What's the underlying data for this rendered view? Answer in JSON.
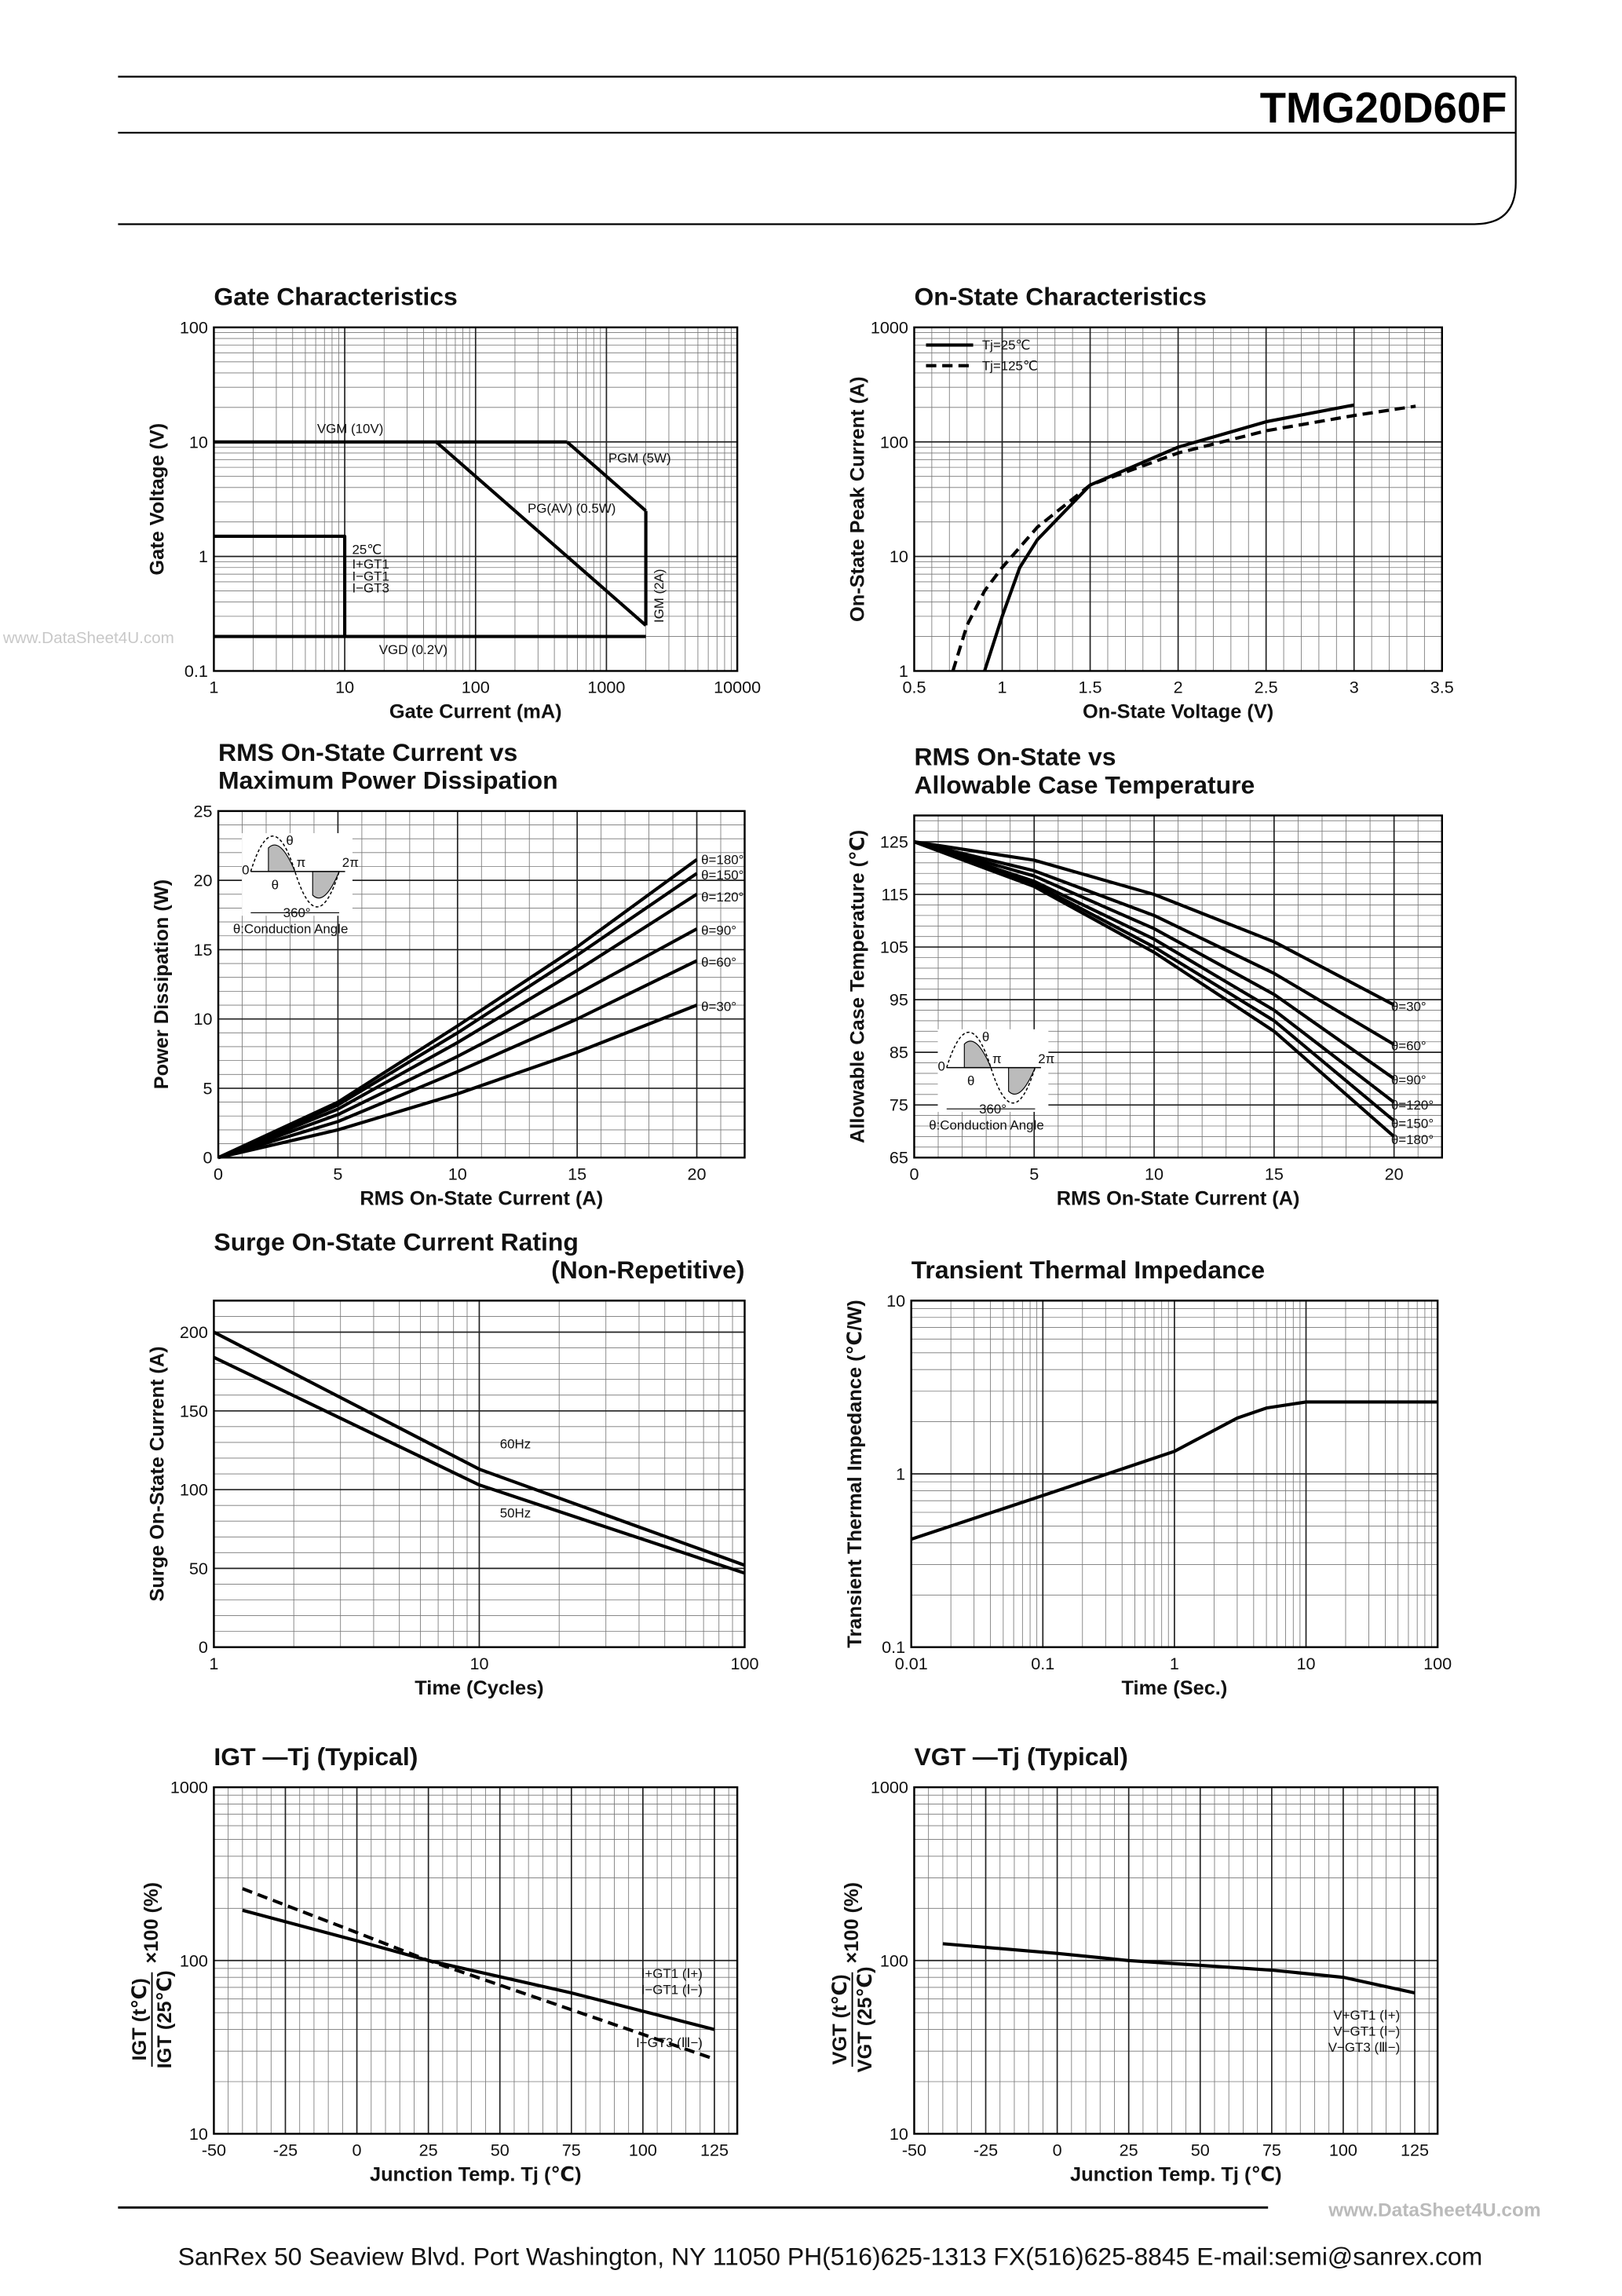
{
  "header": {
    "part": "TMG20D60F"
  },
  "watermark": "www.DataSheet4U.com",
  "footer": {
    "watermark": "www.DataSheet4U.com",
    "address": "SanRex 50 Seaview Blvd. Port Washington, NY 11050 PH(516)625-1313 FX(516)625-8845 E-mail:semi@sanrex.com"
  },
  "chart_data": [
    {
      "type": "line",
      "title": [
        "Gate Characteristics"
      ],
      "xlabel": "Gate Current (mA)",
      "ylabel": "Gate Voltage (V)",
      "xlog": true,
      "ylog": true,
      "xlim": [
        1,
        10000
      ],
      "ylim": [
        0.1,
        100
      ],
      "xticks": [
        1,
        10,
        100,
        1000,
        10000
      ],
      "yticks": [
        0.1,
        1,
        10,
        100
      ],
      "grid": true,
      "minor_grid": true,
      "series": [
        {
          "name": "VGM (10V)",
          "color": "#000000",
          "x": [
            1,
            500
          ],
          "values": [
            10,
            10
          ]
        },
        {
          "name": "PGM (5W)",
          "color": "#000000",
          "x": [
            500,
            2000
          ],
          "values": [
            10,
            2.5
          ]
        },
        {
          "name": "PG(AV) (0.5W)",
          "color": "#000000",
          "x": [
            50,
            2000
          ],
          "values": [
            10,
            0.25
          ]
        },
        {
          "name": "IGM (2A)",
          "color": "#000000",
          "x": [
            2000,
            2000
          ],
          "values": [
            2.5,
            0.25
          ]
        },
        {
          "name": "VGD (0.2V)",
          "color": "#000000",
          "x": [
            1,
            2000
          ],
          "values": [
            0.2,
            0.2
          ]
        },
        {
          "name": "25℃",
          "notes": [
            "I+GT1",
            "I−GT1",
            "I−GT3"
          ],
          "color": "#000000",
          "x": [
            1,
            10,
            10
          ],
          "values": [
            1.5,
            1.5,
            0.2
          ]
        }
      ]
    },
    {
      "type": "line",
      "title": [
        "On-State Characteristics"
      ],
      "xlabel": "On-State Voltage (V)",
      "ylabel": "On-State Peak Current (A)",
      "xlog": false,
      "ylog": true,
      "xlim": [
        0.5,
        3.5
      ],
      "ylim": [
        1,
        1000
      ],
      "xticks": [
        0.5,
        1,
        1.5,
        2,
        2.5,
        3,
        3.5
      ],
      "yticks": [
        1,
        10,
        100,
        1000
      ],
      "grid": true,
      "minor_grid": true,
      "legend": "upper left",
      "series": [
        {
          "name": "Tj=25℃",
          "color": "#000000",
          "dash": false,
          "x": [
            0.9,
            1.0,
            1.1,
            1.2,
            1.5,
            2,
            2.5,
            3
          ],
          "values": [
            1,
            3,
            8,
            14,
            42,
            90,
            150,
            210
          ]
        },
        {
          "name": "Tj=125℃",
          "color": "#000000",
          "dash": true,
          "x": [
            0.72,
            0.8,
            0.9,
            1.0,
            1.2,
            1.5,
            2,
            2.5,
            3,
            3.35
          ],
          "values": [
            1,
            2.5,
            5,
            8,
            18,
            42,
            80,
            125,
            170,
            205
          ]
        }
      ]
    },
    {
      "type": "line",
      "title": [
        "RMS On-State Current vs",
        "Maximum Power Dissipation"
      ],
      "xlabel": "RMS On-State Current (A)",
      "ylabel": "Power Dissipation (W)",
      "xlog": false,
      "ylog": false,
      "xlim": [
        0,
        22
      ],
      "ylim": [
        0,
        25
      ],
      "xticks": [
        0,
        5,
        10,
        15,
        20
      ],
      "yticks": [
        0,
        5,
        10,
        15,
        20,
        25
      ],
      "grid": true,
      "minor_grid": true,
      "inset": {
        "labels": [
          "0",
          "π",
          "2π",
          "θ",
          "θ",
          "360°"
        ],
        "caption": "θ:Conduction Angle"
      },
      "series": [
        {
          "name": "θ=180°",
          "color": "#000000",
          "x": [
            0,
            5,
            10,
            15,
            20
          ],
          "values": [
            0,
            4,
            9.5,
            15.2,
            21.5
          ]
        },
        {
          "name": "θ=150°",
          "color": "#000000",
          "x": [
            0,
            5,
            10,
            15,
            20
          ],
          "values": [
            0,
            3.8,
            9,
            14.6,
            20.5
          ]
        },
        {
          "name": "θ=120°",
          "color": "#000000",
          "x": [
            0,
            5,
            10,
            15,
            20
          ],
          "values": [
            0,
            3.5,
            8.3,
            13.5,
            19
          ]
        },
        {
          "name": "θ=90°",
          "color": "#000000",
          "x": [
            0,
            5,
            10,
            15,
            20
          ],
          "values": [
            0,
            3.1,
            7.3,
            11.8,
            16.5
          ]
        },
        {
          "name": "θ=60°",
          "color": "#000000",
          "x": [
            0,
            5,
            10,
            15,
            20
          ],
          "values": [
            0,
            2.6,
            6.2,
            10,
            14.2
          ]
        },
        {
          "name": "θ=30°",
          "color": "#000000",
          "x": [
            0,
            5,
            10,
            15,
            20
          ],
          "values": [
            0,
            2,
            4.6,
            7.6,
            11
          ]
        }
      ]
    },
    {
      "type": "line",
      "title": [
        "RMS On-State vs",
        "Allowable Case Temperature"
      ],
      "xlabel": "RMS On-State Current (A)",
      "ylabel": "Allowable Case Temperature (℃)",
      "xlog": false,
      "ylog": false,
      "xlim": [
        0,
        22
      ],
      "ylim": [
        65,
        130
      ],
      "xticks": [
        0,
        5,
        10,
        15,
        20
      ],
      "yticks": [
        65,
        75,
        85,
        95,
        105,
        115,
        125
      ],
      "grid": true,
      "minor_grid": true,
      "inset": {
        "labels": [
          "0",
          "π",
          "2π",
          "θ",
          "θ",
          "360°"
        ],
        "caption": "θ:Conduction Angle"
      },
      "series": [
        {
          "name": "θ=30°",
          "color": "#000000",
          "x": [
            0,
            5,
            10,
            15,
            20
          ],
          "values": [
            125,
            121.5,
            115,
            106,
            94
          ]
        },
        {
          "name": "θ=60°",
          "color": "#000000",
          "x": [
            0,
            5,
            10,
            15,
            20
          ],
          "values": [
            125,
            119.5,
            111,
            100,
            86.5
          ]
        },
        {
          "name": "θ=90°",
          "color": "#000000",
          "x": [
            0,
            5,
            10,
            15,
            20
          ],
          "values": [
            125,
            118.5,
            108.5,
            96,
            80
          ]
        },
        {
          "name": "θ=120°",
          "color": "#000000",
          "x": [
            0,
            5,
            10,
            15,
            20
          ],
          "values": [
            125,
            117.5,
            106.5,
            93,
            75.5
          ]
        },
        {
          "name": "θ=150°",
          "color": "#000000",
          "x": [
            0,
            5,
            10,
            15,
            20
          ],
          "values": [
            125,
            117,
            105,
            91,
            72
          ]
        },
        {
          "name": "θ=180°",
          "color": "#000000",
          "x": [
            0,
            5,
            10,
            15,
            20
          ],
          "values": [
            125,
            116.5,
            104,
            89,
            69
          ]
        }
      ]
    },
    {
      "type": "line",
      "title": [
        "Surge On-State Current Rating",
        "(Non-Repetitive)"
      ],
      "xlabel": "Time (Cycles)",
      "ylabel": "Surge On-State Current (A)",
      "xlog": true,
      "ylog": false,
      "xlim": [
        1,
        100
      ],
      "ylim": [
        0,
        220
      ],
      "xticks": [
        1,
        10,
        100
      ],
      "yticks": [
        0,
        50,
        100,
        150,
        200
      ],
      "grid": true,
      "minor_grid": true,
      "series": [
        {
          "name": "60Hz",
          "color": "#000000",
          "x": [
            1,
            10,
            100
          ],
          "values": [
            200,
            113,
            52
          ]
        },
        {
          "name": "50Hz",
          "color": "#000000",
          "x": [
            1,
            10,
            100
          ],
          "values": [
            184,
            103,
            47
          ]
        }
      ]
    },
    {
      "type": "line",
      "title": [
        "Transient Thermal Impedance"
      ],
      "xlabel": "Time (Sec.)",
      "ylabel": "Transient Thermal Impedance (℃/W)",
      "xlog": true,
      "ylog": true,
      "xlim": [
        0.01,
        100
      ],
      "ylim": [
        0.1,
        10
      ],
      "xticks": [
        0.01,
        0.1,
        1,
        10,
        100
      ],
      "yticks": [
        0.1,
        1,
        10
      ],
      "grid": true,
      "minor_grid": true,
      "series": [
        {
          "color": "#000000",
          "x": [
            0.01,
            0.1,
            1,
            3,
            5,
            10,
            100
          ],
          "values": [
            0.42,
            0.75,
            1.35,
            2.1,
            2.4,
            2.6,
            2.6
          ]
        }
      ]
    },
    {
      "type": "line",
      "title": [
        "IGT —Tj (Typical)"
      ],
      "xlabel": "Junction Temp. Tj (℃)",
      "ylabel": {
        "numerator": "IGT (t℃)",
        "denominator": "IGT (25℃)",
        "factor": "×100 (%)"
      },
      "xlog": false,
      "ylog": true,
      "xlim": [
        -50,
        133
      ],
      "ylim": [
        10,
        1000
      ],
      "xticks": [
        -50,
        -25,
        0,
        25,
        50,
        75,
        100,
        125
      ],
      "yticks": [
        10,
        100,
        1000
      ],
      "grid": true,
      "minor_grid": true,
      "series": [
        {
          "labels": [
            "I+GT1 (Ⅰ+)",
            "I−GT1 (Ⅰ−)"
          ],
          "color": "#000000",
          "dash": false,
          "x": [
            -40,
            0,
            25,
            75,
            125
          ],
          "values": [
            195,
            130,
            100,
            65,
            40
          ]
        },
        {
          "labels": [
            "I−GT3 (Ⅲ−)"
          ],
          "color": "#000000",
          "dash": true,
          "x": [
            -40,
            0,
            25,
            75,
            125
          ],
          "values": [
            260,
            145,
            100,
            52,
            27
          ]
        }
      ]
    },
    {
      "type": "line",
      "title": [
        "VGT —Tj (Typical)"
      ],
      "xlabel": "Junction Temp. Tj (℃)",
      "ylabel": {
        "numerator": "VGT (t℃)",
        "denominator": "VGT (25℃)",
        "factor": "×100 (%)"
      },
      "xlog": false,
      "ylog": true,
      "xlim": [
        -50,
        133
      ],
      "ylim": [
        10,
        1000
      ],
      "xticks": [
        -50,
        -25,
        0,
        25,
        50,
        75,
        100,
        125
      ],
      "yticks": [
        10,
        100,
        1000
      ],
      "grid": true,
      "minor_grid": true,
      "series": [
        {
          "labels": [
            "V+GT1 (Ⅰ+)",
            "V−GT1 (Ⅰ−)",
            "V−GT3 (Ⅲ−)"
          ],
          "color": "#000000",
          "x": [
            -40,
            0,
            25,
            75,
            100,
            125
          ],
          "values": [
            125,
            110,
            100,
            88,
            80,
            65
          ]
        }
      ]
    }
  ]
}
